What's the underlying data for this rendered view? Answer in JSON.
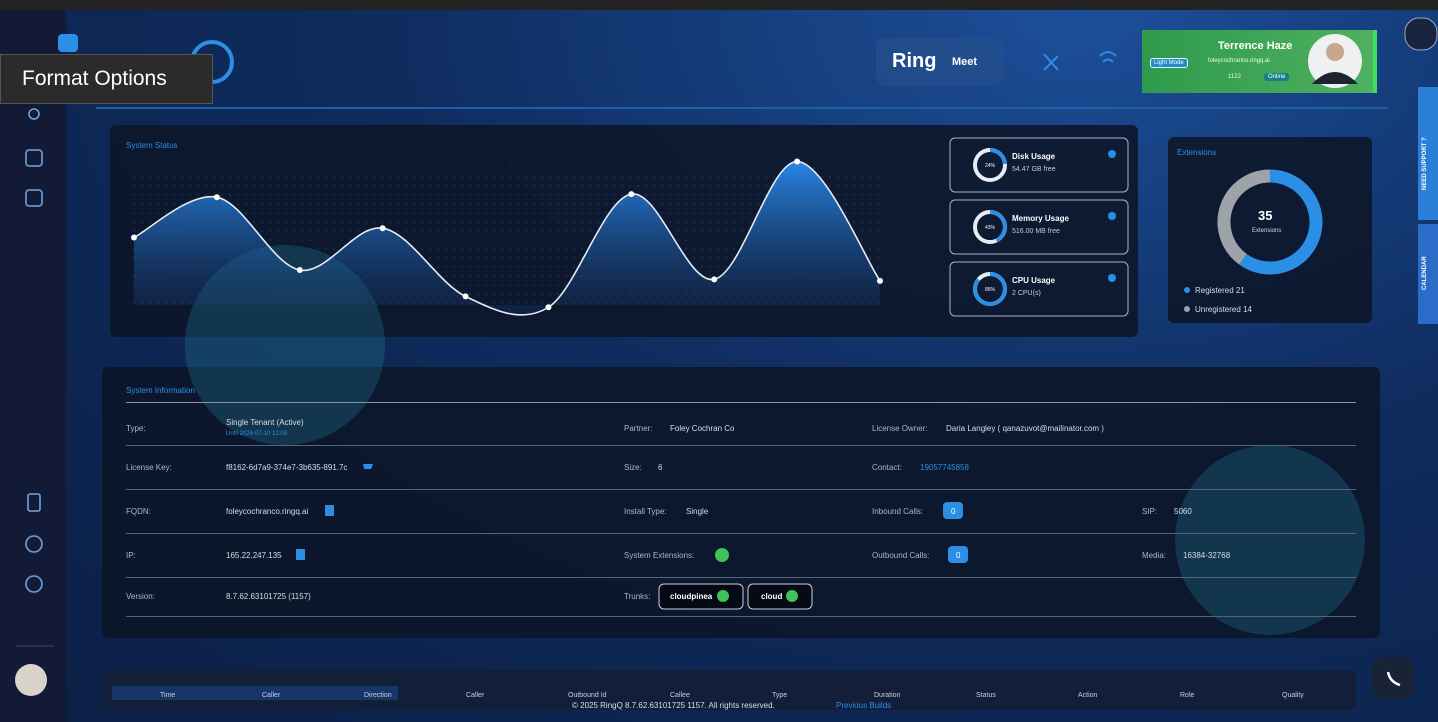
{
  "tooltip": "Format Options",
  "header": {
    "logo": "Ring",
    "logo_suffix": "Meet",
    "user": {
      "name": "Terrence Haze",
      "mode": "Light Mode",
      "email": "foleycochranco.ringq.ai",
      "extension": "1122",
      "status": "Online"
    }
  },
  "system_status": {
    "title": "System Status",
    "chart": {
      "type": "line",
      "values": [
        50,
        76,
        29,
        56,
        12,
        5,
        78,
        23,
        99,
        22
      ],
      "ylim": [
        0,
        100
      ]
    }
  },
  "usage": [
    {
      "name": "Disk Usage",
      "detail": "54.47 GB free",
      "value": 24,
      "label": "24%"
    },
    {
      "name": "Memory Usage",
      "detail": "516.00 MB free",
      "value": 43,
      "label": "43%"
    },
    {
      "name": "CPU Usage",
      "detail": "2 CPU(s)",
      "value": 86,
      "label": "86%"
    }
  ],
  "extensions": {
    "title": "Extensions",
    "total": 35,
    "caption": "Extensions",
    "registered": {
      "label": "Registered 21",
      "value": 21
    },
    "unregistered": {
      "label": "Unregistered 14",
      "value": 14
    }
  },
  "system_information": {
    "title": "System Information",
    "type": {
      "label": "Type:",
      "value": "Single Tenant (Active)",
      "sub": "Until 2026-07-10 12:00"
    },
    "partner": {
      "label": "Partner:",
      "value": "Foley Cochran Co"
    },
    "license_owner": {
      "label": "License Owner:",
      "value": "Daria Langley ( qanazuvot@mailinator.com )"
    },
    "license_key": {
      "label": "License Key:",
      "value": "f8162-6d7a9-374e7-3b635-891.7c"
    },
    "size": {
      "label": "Size:",
      "value": "6"
    },
    "contact": {
      "label": "Contact:",
      "value": "19057745858"
    },
    "fqdn": {
      "label": "FQDN:",
      "value": "foleycochranco.ringq.ai"
    },
    "install_type": {
      "label": "Install Type:",
      "value": "Single"
    },
    "inbound_calls": {
      "label": "Inbound Calls:",
      "value": "0"
    },
    "sip": {
      "label": "SIP:",
      "value": "5060"
    },
    "ip": {
      "label": "IP:",
      "value": "165.22.247.135"
    },
    "system_extensions": {
      "label": "System Extensions:"
    },
    "outbound_calls": {
      "label": "Outbound Calls:",
      "value": "0"
    },
    "media": {
      "label": "Media:",
      "value": "16384-32768"
    },
    "version": {
      "label": "Version:",
      "value": "8.7.62.63101725 (1157)"
    },
    "trunks": {
      "label": "Trunks:",
      "values": [
        "cloudpinea",
        "cloud"
      ]
    }
  },
  "side_tabs": [
    "NEED SUPPORT ?",
    "CALENDAR"
  ],
  "calls_table": {
    "headers": [
      "Time",
      "Caller",
      "Direction",
      "Caller",
      "Outbound Id",
      "Callee",
      "Type",
      "Duration",
      "Status",
      "Action",
      "Role",
      "Quality"
    ]
  },
  "footer": {
    "copyright": "© 2025 RingQ 8.7.62.63101725 1157. All rights reserved.",
    "link": "Previous Builds"
  }
}
